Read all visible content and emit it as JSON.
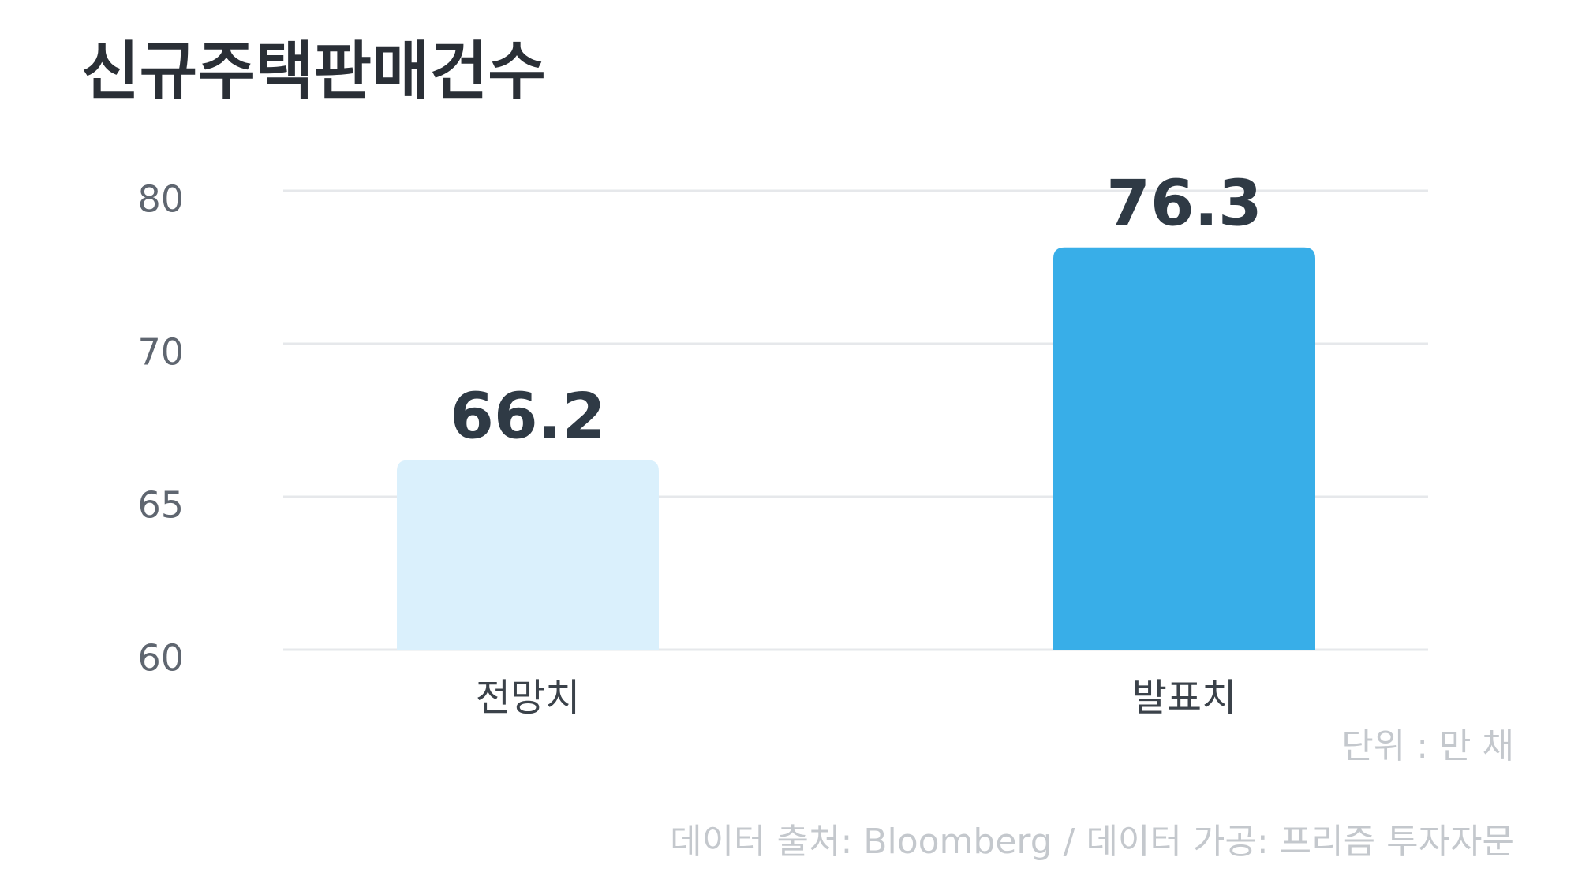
{
  "chart_data": {
    "type": "bar",
    "title": "신규주택판매건수",
    "categories": [
      "전망치",
      "발표치"
    ],
    "values": [
      66.2,
      76.3
    ],
    "colors": [
      "#daf0fc",
      "#38aee8"
    ],
    "ylim": [
      60,
      80
    ],
    "yticks": [
      60,
      65,
      70,
      80
    ],
    "grid": true,
    "unit_note": "단위 : 만 채",
    "source": "데이터 출처: Bloomberg / 데이터 가공: 프리즘 투자자문"
  }
}
